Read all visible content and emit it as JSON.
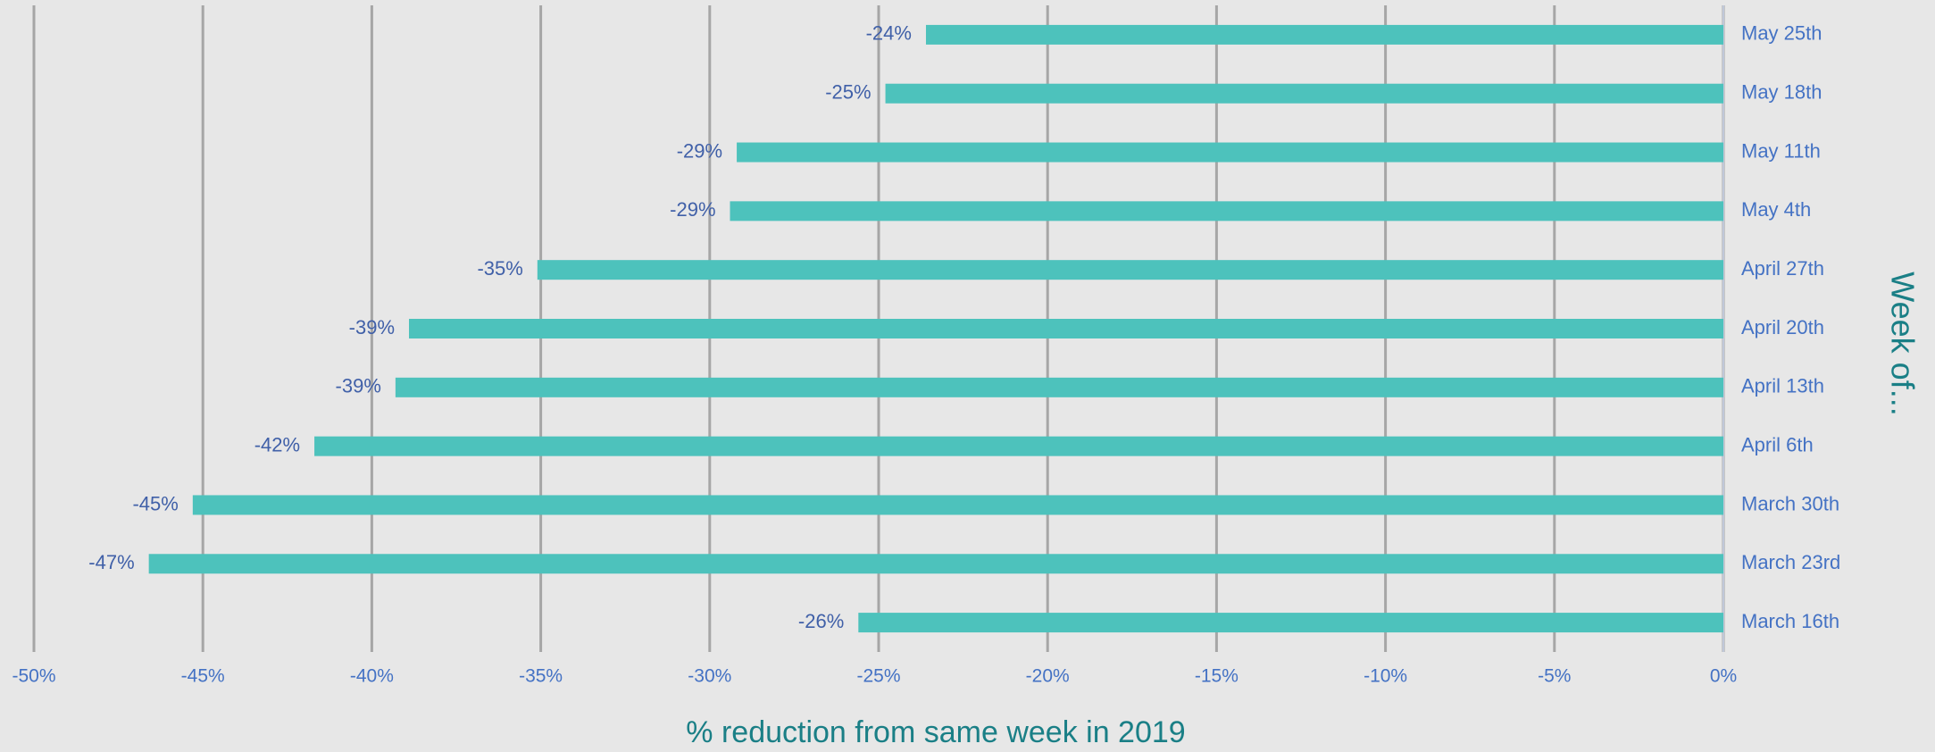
{
  "chart_data": {
    "type": "bar",
    "orientation": "horizontal",
    "x_label": "% reduction from same week in 2019",
    "y_label": "Week of...",
    "categories": [
      "May 25th",
      "May 18th",
      "May 11th",
      "May 4th",
      "April 27th",
      "April 20th",
      "April 13th",
      "April 6th",
      "March 30th",
      "March 23rd",
      "March 16th"
    ],
    "values": [
      -23.6,
      -24.8,
      -29.2,
      -29.4,
      -35.1,
      -38.9,
      -39.3,
      -41.7,
      -45.3,
      -46.6,
      -25.6
    ],
    "value_labels": [
      "-24%",
      "-25%",
      "-29%",
      "-29%",
      "-35%",
      "-39%",
      "-39%",
      "-42%",
      "-45%",
      "-47%",
      "-26%"
    ],
    "color": "#4dc2bc",
    "xlim": [
      -50,
      0
    ],
    "xticks": [
      {
        "value": -50,
        "label": "-50%"
      },
      {
        "value": -45,
        "label": "-45%"
      },
      {
        "value": -40,
        "label": "-40%"
      },
      {
        "value": -35,
        "label": "-35%"
      },
      {
        "value": -30,
        "label": "-30%"
      },
      {
        "value": -25,
        "label": "-25%"
      },
      {
        "value": -20,
        "label": "-20%"
      },
      {
        "value": -15,
        "label": "-15%"
      },
      {
        "value": -10,
        "label": "-10%"
      },
      {
        "value": -5,
        "label": "-5%"
      },
      {
        "value": 0,
        "label": "0%"
      }
    ],
    "grid": true
  }
}
